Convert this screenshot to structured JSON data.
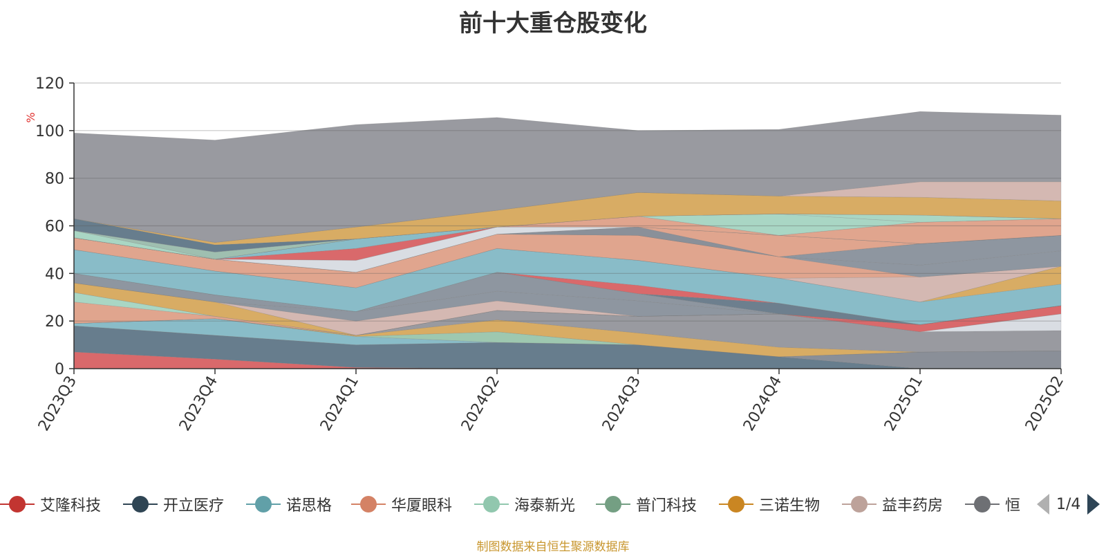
{
  "chart_data": {
    "type": "area",
    "stacked": true,
    "title": "前十大重仓股变化",
    "ylabel": "%",
    "ylim": [
      0,
      120
    ],
    "yticks": [
      0,
      20,
      40,
      60,
      80,
      100,
      120
    ],
    "grid": true,
    "categories": [
      "2023Q3",
      "2023Q4",
      "2024Q1",
      "2024Q2",
      "2024Q3",
      "2024Q4",
      "2025Q1",
      "2025Q2"
    ],
    "series": [
      {
        "name": "艾隆科技",
        "color": "#d9696b",
        "values": [
          7,
          4,
          0.5,
          0,
          0,
          0,
          0,
          0
        ]
      },
      {
        "name": "开立医疗",
        "color": "#677d8d",
        "values": [
          11,
          10,
          9.5,
          11,
          10,
          5,
          0,
          0
        ]
      },
      {
        "name": "",
        "color": "#8a8f98",
        "values": [
          0,
          0,
          0,
          0,
          0,
          0,
          7,
          7.5
        ]
      },
      {
        "name": "诺思格",
        "color": "#89bcc8",
        "values": [
          1,
          7,
          3.5,
          0,
          0,
          0,
          0,
          0
        ]
      },
      {
        "name": "海泰新光",
        "color": "#9ec8b0",
        "values": [
          0,
          0,
          0,
          4.5,
          0,
          0,
          0,
          0
        ]
      },
      {
        "name": "三诺生物",
        "color": "#d8ac64",
        "values": [
          0,
          0,
          0.5,
          5,
          5,
          4,
          0,
          0
        ]
      },
      {
        "name": "",
        "color": "#999aa0",
        "values": [
          0,
          0,
          0,
          4,
          7,
          14,
          8.5,
          8.5
        ]
      },
      {
        "name": "",
        "color": "#d9dde3",
        "values": [
          0,
          0,
          0,
          0,
          0,
          0,
          0,
          7
        ]
      },
      {
        "name": "",
        "color": "#d9696b",
        "values": [
          0,
          0,
          0,
          0,
          0,
          0,
          3,
          3.5
        ]
      },
      {
        "name": "华厦眼科",
        "color": "#e0a58e",
        "values": [
          9,
          1,
          0,
          0,
          0,
          0,
          0,
          0
        ]
      },
      {
        "name": "海泰新光",
        "color": "#a9d6c4",
        "values": [
          4,
          0,
          0,
          0,
          0,
          0,
          0,
          0
        ]
      },
      {
        "name": "三诺生物",
        "color": "#d8ac64",
        "values": [
          4,
          6,
          0,
          0,
          0,
          0,
          0,
          0
        ]
      },
      {
        "name": "益丰药房",
        "color": "#d4b8b2",
        "values": [
          0,
          0,
          6,
          4,
          0,
          0,
          0,
          0
        ]
      },
      {
        "name": "",
        "color": "#8e96a0",
        "values": [
          0,
          0,
          4,
          4,
          6.5,
          0,
          0,
          0
        ]
      },
      {
        "name": "",
        "color": "#999aa0",
        "values": [
          0,
          0,
          0,
          0,
          0,
          0,
          0,
          0
        ]
      },
      {
        "name": "恒",
        "color": "#8e96a0",
        "values": [
          4,
          3,
          0,
          8,
          3,
          0,
          0,
          0
        ]
      },
      {
        "name": "",
        "color": "#6d7f8e",
        "values": [
          0,
          0,
          0,
          0,
          0,
          4.5,
          0,
          0
        ]
      },
      {
        "name": "",
        "color": "#d9696b",
        "values": [
          0,
          0,
          0,
          0,
          3.5,
          0,
          0,
          0
        ]
      },
      {
        "name": "诺思格",
        "color": "#89bcc8",
        "values": [
          10,
          10,
          10,
          10,
          10.5,
          10.5,
          9.5,
          9
        ]
      },
      {
        "name": "",
        "color": "#d8ac64",
        "values": [
          0,
          0,
          0,
          0,
          0,
          0,
          0,
          7.5
        ]
      },
      {
        "name": "",
        "color": "#d4b8b2",
        "values": [
          0,
          0,
          0,
          0,
          0,
          0,
          10.5,
          0
        ]
      },
      {
        "name": "华厦眼科",
        "color": "#e0a58e",
        "values": [
          5,
          5,
          6.5,
          6,
          10.5,
          9,
          0,
          0
        ]
      },
      {
        "name": "",
        "color": "#8e96a0",
        "values": [
          0,
          0,
          0,
          0,
          0,
          0,
          5,
          6.5
        ]
      },
      {
        "name": "",
        "color": "#8e96a0",
        "values": [
          0,
          0,
          0,
          0,
          0,
          0,
          9,
          6.5
        ]
      },
      {
        "name": "",
        "color": "#8a9099",
        "values": [
          0,
          0,
          0,
          0,
          3.5,
          0,
          0,
          0
        ]
      },
      {
        "name": "",
        "color": "#e0a58e",
        "values": [
          0,
          0,
          0,
          0,
          0,
          9,
          0,
          0
        ]
      },
      {
        "name": "",
        "color": "#d9dde3",
        "values": [
          0,
          0,
          5,
          3,
          0,
          0,
          0,
          0
        ]
      },
      {
        "name": "",
        "color": "#d9696b",
        "values": [
          0,
          0,
          5,
          0,
          0,
          0,
          0,
          0
        ]
      },
      {
        "name": "",
        "color": "#89bcc8",
        "values": [
          0,
          0,
          4,
          0,
          0,
          0,
          0,
          0
        ]
      },
      {
        "name": "",
        "color": "#e0a58e",
        "values": [
          0,
          0,
          0,
          0,
          4.5,
          0,
          9,
          7
        ]
      },
      {
        "name": "",
        "color": "#a9d6c4",
        "values": [
          0,
          0,
          0,
          0,
          0,
          9,
          0,
          0
        ]
      },
      {
        "name": "",
        "color": "#a9d6c4",
        "values": [
          3,
          0,
          0,
          0,
          0,
          0,
          3,
          0
        ]
      },
      {
        "name": "",
        "color": "#9fbfb0",
        "values": [
          0,
          3,
          0,
          0,
          0,
          0,
          0,
          0
        ]
      },
      {
        "name": "",
        "color": "#677d8d",
        "values": [
          5,
          3,
          0,
          0,
          0,
          0,
          0,
          0
        ]
      },
      {
        "name": "",
        "color": "#d8ac64",
        "values": [
          0,
          1,
          5,
          7,
          10,
          7.5,
          7.5,
          7.5
        ]
      },
      {
        "name": "",
        "color": "#d4b8b2",
        "values": [
          0,
          0,
          0,
          0,
          0,
          0,
          6.5,
          8
        ]
      },
      {
        "name": "",
        "color": "#999aa0",
        "values": [
          36,
          43,
          43,
          39,
          26,
          28,
          29.5,
          28
        ]
      }
    ]
  },
  "legend": {
    "items": [
      {
        "name": "艾隆科技",
        "color": "#c23531"
      },
      {
        "name": "开立医疗",
        "color": "#2f4554"
      },
      {
        "name": "诺思格",
        "color": "#61a0a8"
      },
      {
        "name": "华厦眼科",
        "color": "#d48265"
      },
      {
        "name": "海泰新光",
        "color": "#91c7ae"
      },
      {
        "name": "普门科技",
        "color": "#749f83"
      },
      {
        "name": "三诺生物",
        "color": "#ca8622"
      },
      {
        "name": "益丰药房",
        "color": "#bda29a"
      },
      {
        "name": "恒",
        "color": "#6e7074"
      }
    ],
    "page": "1/4"
  },
  "source_note": "制图数据来自恒生聚源数据库"
}
